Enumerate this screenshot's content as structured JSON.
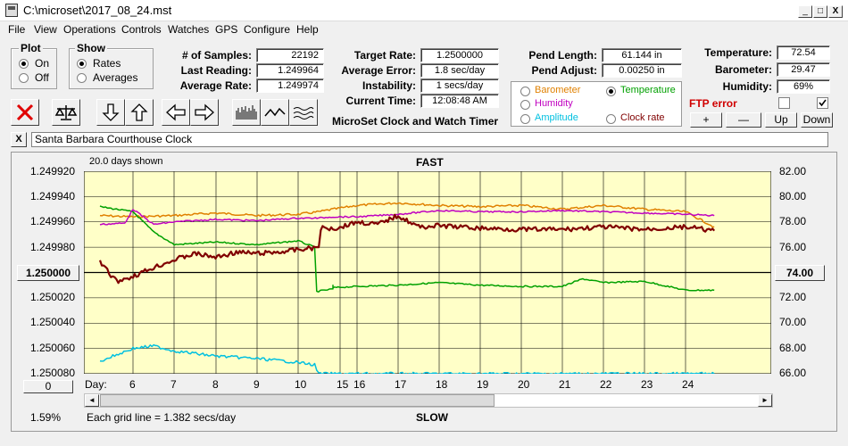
{
  "window": {
    "title": "C:\\microset\\2017_08_24.mst",
    "min": "_",
    "max": "□",
    "close": "X"
  },
  "menu": [
    "File",
    "View",
    "Operations",
    "Controls",
    "Watches",
    "GPS",
    "Configure",
    "Help"
  ],
  "plot_group": {
    "title": "Plot",
    "on": "On",
    "off": "Off"
  },
  "show_group": {
    "title": "Show",
    "rates": "Rates",
    "averages": "Averages"
  },
  "stats": {
    "samples_label": "# of Samples:",
    "samples": "22192",
    "last_label": "Last Reading:",
    "last": "1.249964",
    "avg_label": "Average Rate:",
    "avg": "1.249974"
  },
  "rates": {
    "target_label": "Target Rate:",
    "target": "1.2500000",
    "error_label": "Average Error:",
    "error": "1.8 sec/day",
    "instab_label": "Instability:",
    "instab": "1 secs/day",
    "time_label": "Current Time:",
    "time": "12:08:48 AM",
    "app_name": "MicroSet Clock and Watch Timer"
  },
  "pend": {
    "length_label": "Pend Length:",
    "length": "61.144 in",
    "adjust_label": "Pend Adjust:",
    "adjust": "0.00250 in"
  },
  "sensors": {
    "barometer": "Barometer",
    "temperature": "Temperature",
    "humidity": "Humidity",
    "amplitude": "Amplitude",
    "clockrate": "Clock rate",
    "colors": {
      "barometer": "#e08000",
      "temperature": "#00a000",
      "humidity": "#c000c0",
      "amplitude": "#00c0e0",
      "clockrate": "#800000"
    }
  },
  "env": {
    "temp_label": "Temperature:",
    "temp": "72.54",
    "baro_label": "Barometer:",
    "baro": "29.47",
    "hum_label": "Humidity:",
    "hum": "69%",
    "ftp": "FTP error"
  },
  "adjust_buttons": {
    "plus": "+",
    "minus": "—",
    "up": "Up",
    "down": "Down"
  },
  "clock_name": "Santa Barbara Courthouse Clock",
  "close_x": "X",
  "plot": {
    "days_shown": "20.0 days shown",
    "fast": "FAST",
    "slow": "SLOW",
    "left_ticks": [
      "1.249920",
      "1.249940",
      "1.249960",
      "1.249980",
      "1.250000",
      "1.250020",
      "1.250040",
      "1.250060",
      "1.250080"
    ],
    "right_ticks": [
      "82.00",
      "80.00",
      "78.00",
      "76.00",
      "74.00",
      "72.00",
      "70.00",
      "68.00",
      "66.00"
    ],
    "center_left": "1.250000",
    "center_right": "74.00",
    "zero_button": "0",
    "day_label": "Day:",
    "days": [
      "6",
      "7",
      "8",
      "9",
      "10",
      "15",
      "16",
      "17",
      "18",
      "19",
      "20",
      "21",
      "22",
      "23",
      "24"
    ],
    "percent": "1.59%",
    "grid_note": "Each grid line = 1.382 secs/day",
    "scroll_left": "◄",
    "scroll_right": "►"
  },
  "chart_data": {
    "type": "line",
    "xlabel": "Day:",
    "y_left_range": [
      1.24992,
      1.25008
    ],
    "y_right_range": [
      66,
      82
    ],
    "grid": true,
    "series": [
      {
        "name": "Barometer",
        "color": "#e08000",
        "axis": "right",
        "x": [
          5.2,
          6,
          7,
          8,
          9,
          10,
          10.5,
          15.2,
          16,
          17,
          18,
          19,
          20,
          21,
          22,
          23,
          24,
          24.7
        ],
        "values": [
          78.5,
          78.4,
          78.5,
          78.7,
          78.5,
          78.6,
          78.8,
          79.0,
          79.3,
          79.5,
          79.3,
          79.2,
          79.3,
          79.0,
          79.3,
          79.0,
          78.8,
          77.6
        ]
      },
      {
        "name": "Temperature",
        "color": "#00a000",
        "axis": "right",
        "x": [
          5.2,
          6,
          6.5,
          7,
          8,
          9,
          10,
          10.4,
          10.45,
          11,
          12,
          13,
          14,
          15,
          16,
          17,
          18,
          19,
          20,
          21,
          21.5,
          22,
          23,
          24,
          24.7
        ],
        "values": [
          79.2,
          78.8,
          77.2,
          76.2,
          76.4,
          76.2,
          76.5,
          76.0,
          72.5,
          72.7,
          72.9,
          73.0,
          72.9,
          72.8,
          72.9,
          73.0,
          73.2,
          73.0,
          72.9,
          72.9,
          73.5,
          73.2,
          73.3,
          72.6,
          72.6
        ]
      },
      {
        "name": "Humidity",
        "color": "#c000c0",
        "axis": "right",
        "x": [
          5.2,
          5.8,
          6,
          6.5,
          7,
          8,
          9,
          10,
          10.5,
          15,
          16,
          17,
          18,
          19,
          20,
          21,
          22,
          23,
          24,
          24.7
        ],
        "values": [
          77.8,
          77.9,
          79.0,
          77.8,
          78.0,
          78.2,
          78.1,
          78.3,
          78.3,
          78.4,
          78.4,
          78.6,
          78.9,
          78.8,
          78.8,
          78.9,
          78.8,
          78.7,
          78.6,
          78.5
        ]
      },
      {
        "name": "Amplitude",
        "color": "#00c0e0",
        "axis": "right",
        "x": [
          5.2,
          6,
          6.5,
          7,
          8,
          9,
          10,
          10.4,
          10.5,
          24.7
        ],
        "values": [
          67.0,
          68.0,
          68.2,
          67.8,
          67.4,
          67.2,
          66.9,
          66.7,
          66.0,
          66.0
        ]
      },
      {
        "name": "Clock rate",
        "color": "#800000",
        "axis": "left",
        "x": [
          5.2,
          5.6,
          6,
          6.5,
          7,
          7.5,
          8,
          8.5,
          9,
          9.5,
          10,
          10.5,
          10.55,
          11,
          15.5,
          16,
          16.5,
          17,
          17.5,
          18,
          19,
          20,
          21,
          22,
          23,
          24,
          24.7
        ],
        "values": [
          1.249992,
          1.250007,
          1.250003,
          1.249996,
          1.24999,
          1.249985,
          1.249988,
          1.249984,
          1.249985,
          1.249984,
          1.249982,
          1.24998,
          1.249965,
          1.249965,
          1.249965,
          1.24996,
          1.249962,
          1.249955,
          1.249964,
          1.249963,
          1.249965,
          1.249966,
          1.249966,
          1.249964,
          1.249966,
          1.249964,
          1.249967
        ]
      }
    ]
  }
}
